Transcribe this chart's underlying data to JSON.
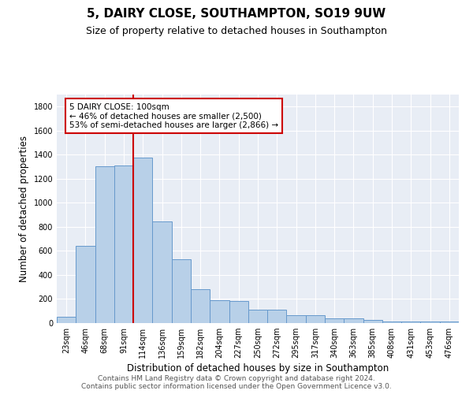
{
  "title": "5, DAIRY CLOSE, SOUTHAMPTON, SO19 9UW",
  "subtitle": "Size of property relative to detached houses in Southampton",
  "xlabel": "Distribution of detached houses by size in Southampton",
  "ylabel": "Number of detached properties",
  "categories": [
    "23sqm",
    "46sqm",
    "68sqm",
    "91sqm",
    "114sqm",
    "136sqm",
    "159sqm",
    "182sqm",
    "204sqm",
    "227sqm",
    "250sqm",
    "272sqm",
    "295sqm",
    "317sqm",
    "340sqm",
    "363sqm",
    "385sqm",
    "408sqm",
    "431sqm",
    "453sqm",
    "476sqm"
  ],
  "values": [
    55,
    640,
    1305,
    1310,
    1375,
    845,
    530,
    285,
    190,
    185,
    110,
    110,
    68,
    68,
    38,
    38,
    25,
    15,
    10,
    10,
    15
  ],
  "bar_color": "#b8d0e8",
  "bar_edge_color": "#6699cc",
  "bar_width": 1.0,
  "vline_color": "#cc0000",
  "vline_x": 3.5,
  "annotation_line1": "5 DAIRY CLOSE: 100sqm",
  "annotation_line2": "← 46% of detached houses are smaller (2,500)",
  "annotation_line3": "53% of semi-detached houses are larger (2,866) →",
  "annotation_box_color": "#ffffff",
  "annotation_box_edge_color": "#cc0000",
  "ylim": [
    0,
    1900
  ],
  "yticks": [
    0,
    200,
    400,
    600,
    800,
    1000,
    1200,
    1400,
    1600,
    1800
  ],
  "bg_color": "#e8edf5",
  "footer": "Contains HM Land Registry data © Crown copyright and database right 2024.\nContains public sector information licensed under the Open Government Licence v3.0.",
  "title_fontsize": 11,
  "subtitle_fontsize": 9,
  "xlabel_fontsize": 8.5,
  "ylabel_fontsize": 8.5,
  "tick_fontsize": 7,
  "footer_fontsize": 6.5,
  "annot_fontsize": 7.5
}
